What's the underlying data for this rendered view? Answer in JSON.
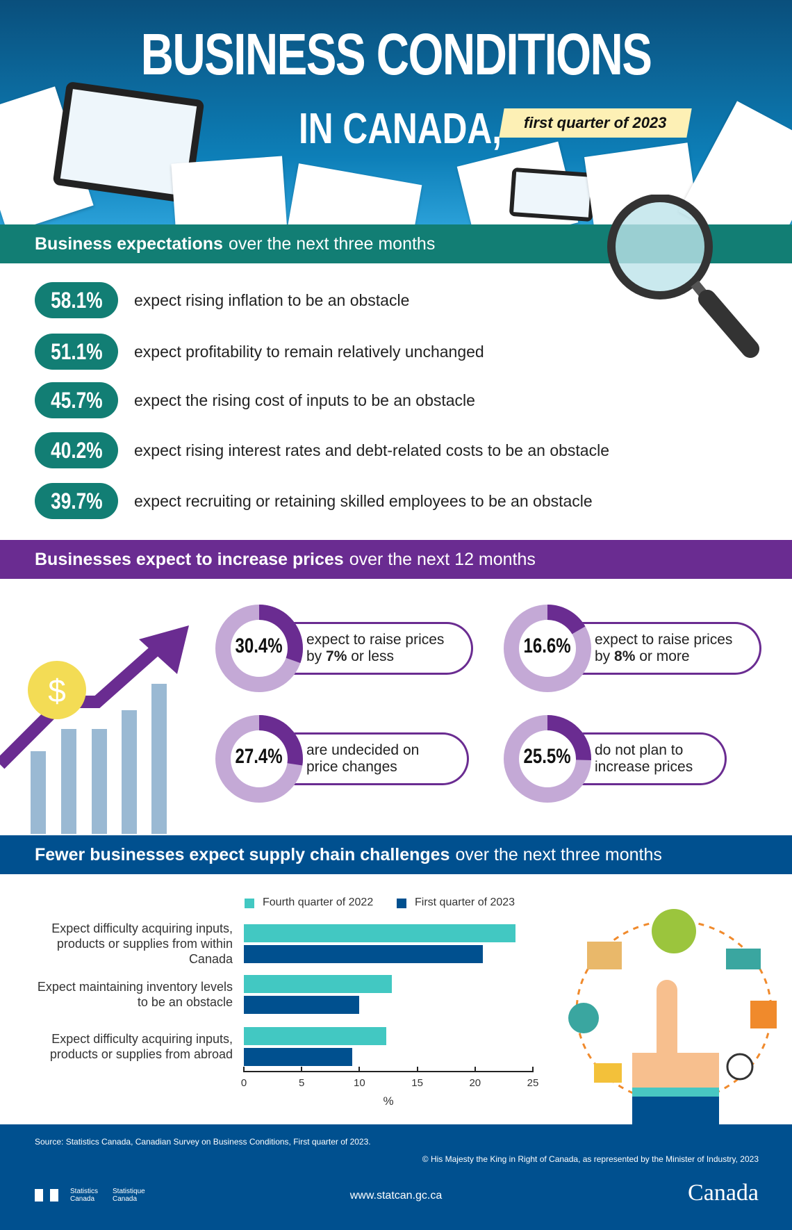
{
  "header": {
    "title_line1": "BUSINESS CONDITIONS",
    "title_line2": "IN CANADA,",
    "period": "first quarter of 2023"
  },
  "expectations": {
    "heading_bold": "Business expectations",
    "heading_rest": "over the next three months",
    "items": [
      {
        "value": "58.1%",
        "text": "expect rising inflation to be an obstacle"
      },
      {
        "value": "51.1%",
        "text": "expect profitability to remain relatively unchanged"
      },
      {
        "value": "45.7%",
        "text": "expect the rising cost of inputs to be an obstacle"
      },
      {
        "value": "40.2%",
        "text": "expect rising interest rates and debt-related costs to be an obstacle"
      },
      {
        "value": "39.7%",
        "text": "expect recruiting or retaining skilled employees to be an obstacle"
      }
    ]
  },
  "prices": {
    "heading_bold": "Businesses expect to increase prices",
    "heading_rest": "over the next 12 months",
    "dollar_symbol": "$",
    "items": [
      {
        "value": "30.4%",
        "fraction": 0.304,
        "line1": "expect to raise prices",
        "line2_pre": "by ",
        "line2_bold": "7%",
        "line2_post": " or less"
      },
      {
        "value": "16.6%",
        "fraction": 0.166,
        "line1": "expect to raise prices",
        "line2_pre": "by ",
        "line2_bold": "8%",
        "line2_post": " or more"
      },
      {
        "value": "27.4%",
        "fraction": 0.274,
        "line1": "are undecided on",
        "line2_pre": "price changes",
        "line2_bold": "",
        "line2_post": ""
      },
      {
        "value": "25.5%",
        "fraction": 0.255,
        "line1": "do not plan to",
        "line2_pre": "increase prices",
        "line2_bold": "",
        "line2_post": ""
      }
    ]
  },
  "supply": {
    "heading_bold": "Fewer businesses expect supply chain challenges",
    "heading_rest": "over the next three months"
  },
  "chart_data": {
    "type": "bar",
    "orientation": "horizontal",
    "categories": [
      "Expect difficulty acquiring inputs, products or supplies from within Canada",
      "Expect maintaining inventory levels to be an obstacle",
      "Expect difficulty acquiring inputs, products or supplies from abroad"
    ],
    "series": [
      {
        "name": "Fourth quarter of 2022",
        "color": "#42c8c2",
        "values": [
          23.5,
          12.8,
          12.3
        ]
      },
      {
        "name": "First quarter of 2023",
        "color": "#00508f",
        "values": [
          20.7,
          10.0,
          9.4
        ]
      }
    ],
    "xlabel": "%",
    "xlim": [
      0,
      25
    ],
    "xticks": [
      "0",
      "5",
      "10",
      "15",
      "20",
      "25"
    ],
    "legend": "top",
    "grid": false
  },
  "footer": {
    "source": "Source: Statistics Canada, Canadian Survey on Business Conditions, First quarter of 2023.",
    "copyright": "© His Majesty the King in Right of Canada, as represented by the Minister of Industry, 2023",
    "url": "www.statcan.gc.ca",
    "logo_en": "Statistics Canada",
    "logo_fr": "Statistique Canada",
    "wordmark": "Canada"
  },
  "colors": {
    "teal": "#127e74",
    "purple": "#6a2c91",
    "blue": "#00508f",
    "light_purple": "#c4a9d6"
  }
}
